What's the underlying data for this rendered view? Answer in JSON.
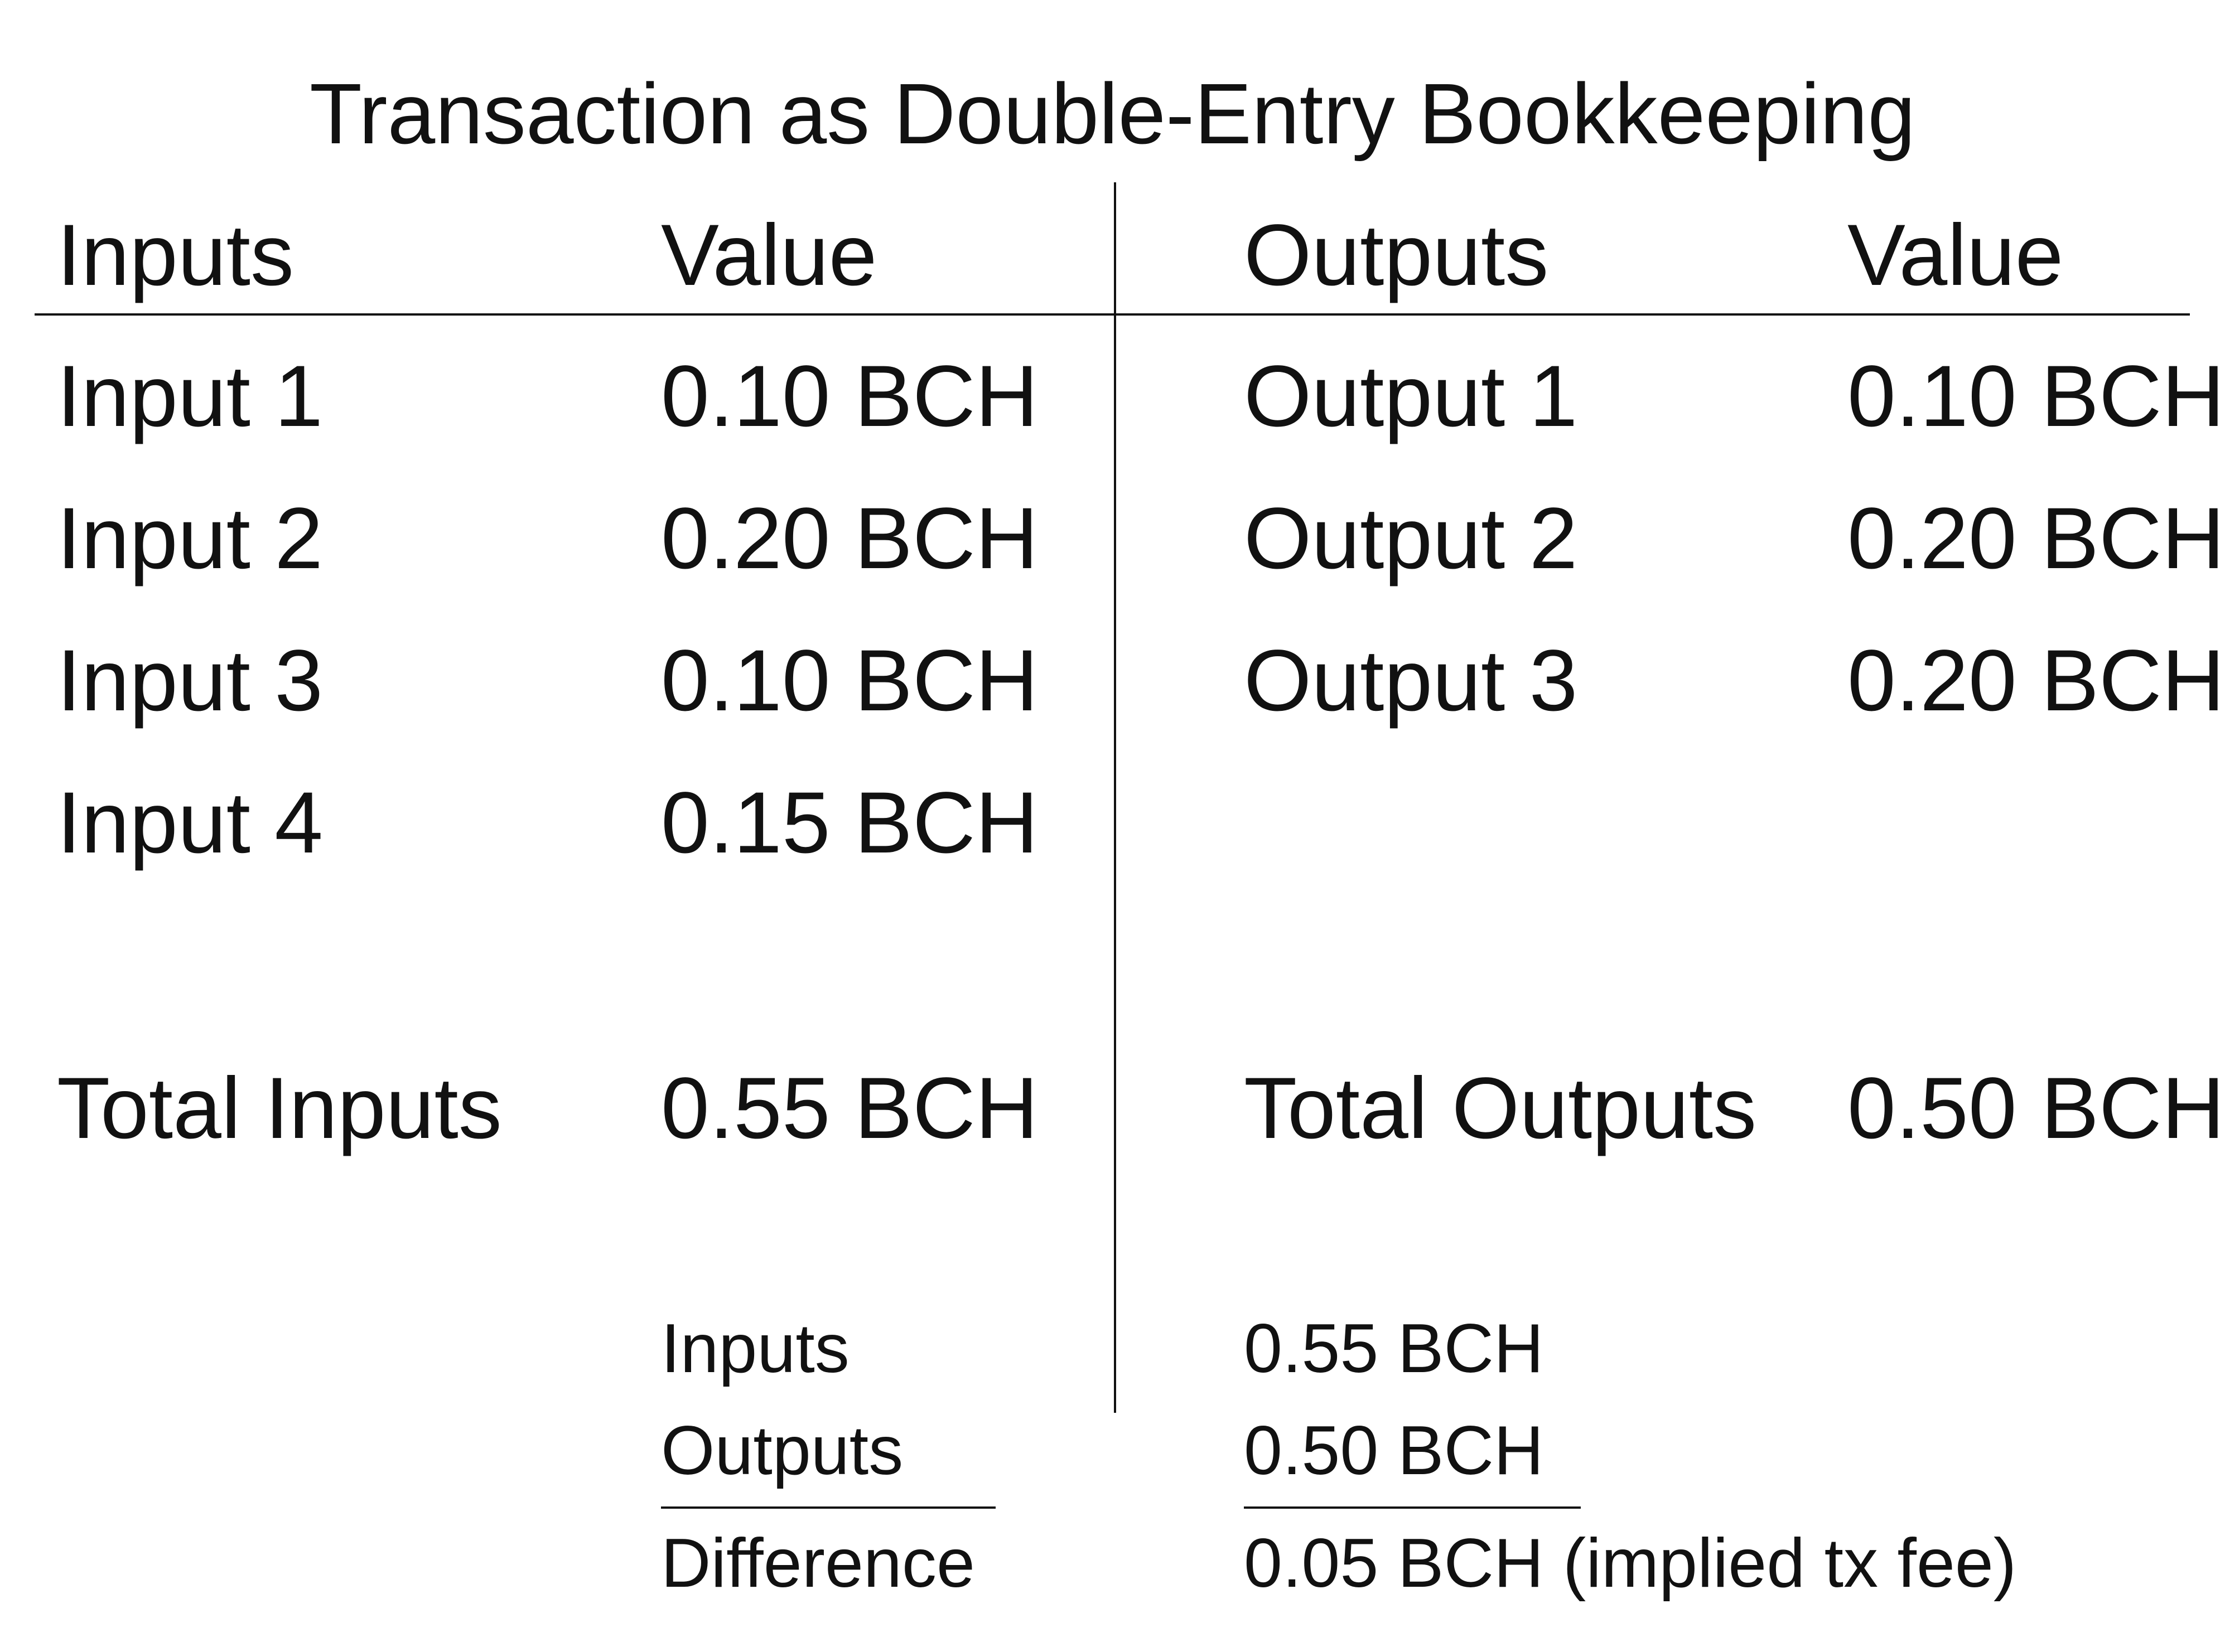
{
  "title": "Transaction as Double-Entry Bookkeeping",
  "headers": {
    "inputs": "Inputs",
    "inputs_value": "Value",
    "outputs": "Outputs",
    "outputs_value": "Value"
  },
  "inputs": [
    {
      "label": "Input 1",
      "value": "0.10 BCH"
    },
    {
      "label": "Input 2",
      "value": "0.20 BCH"
    },
    {
      "label": "Input 3",
      "value": "0.10 BCH"
    },
    {
      "label": "Input 4",
      "value": "0.15 BCH"
    }
  ],
  "outputs": [
    {
      "label": "Output 1",
      "value": "0.10 BCH"
    },
    {
      "label": "Output 2",
      "value": "0.20 BCH"
    },
    {
      "label": "Output 3",
      "value": "0.20 BCH"
    }
  ],
  "totals": {
    "inputs_label": "Total Inputs",
    "inputs_value": "0.55 BCH",
    "outputs_label": "Total Outputs",
    "outputs_value": "0.50 BCH"
  },
  "summary": {
    "inputs_label": "Inputs",
    "inputs_value": "0.55 BCH",
    "outputs_label": "Outputs",
    "outputs_value": "0.50 BCH",
    "difference_label": "Difference",
    "difference_value": "0.05 BCH (implied tx fee)"
  }
}
